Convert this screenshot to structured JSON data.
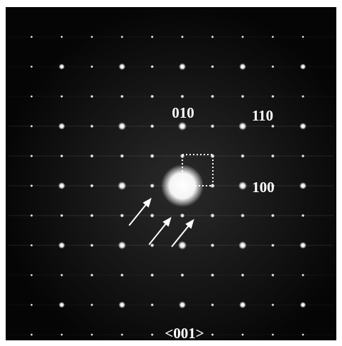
{
  "labels": [
    "010",
    "110",
    "100"
  ],
  "zone_axis": "<001>"
}
